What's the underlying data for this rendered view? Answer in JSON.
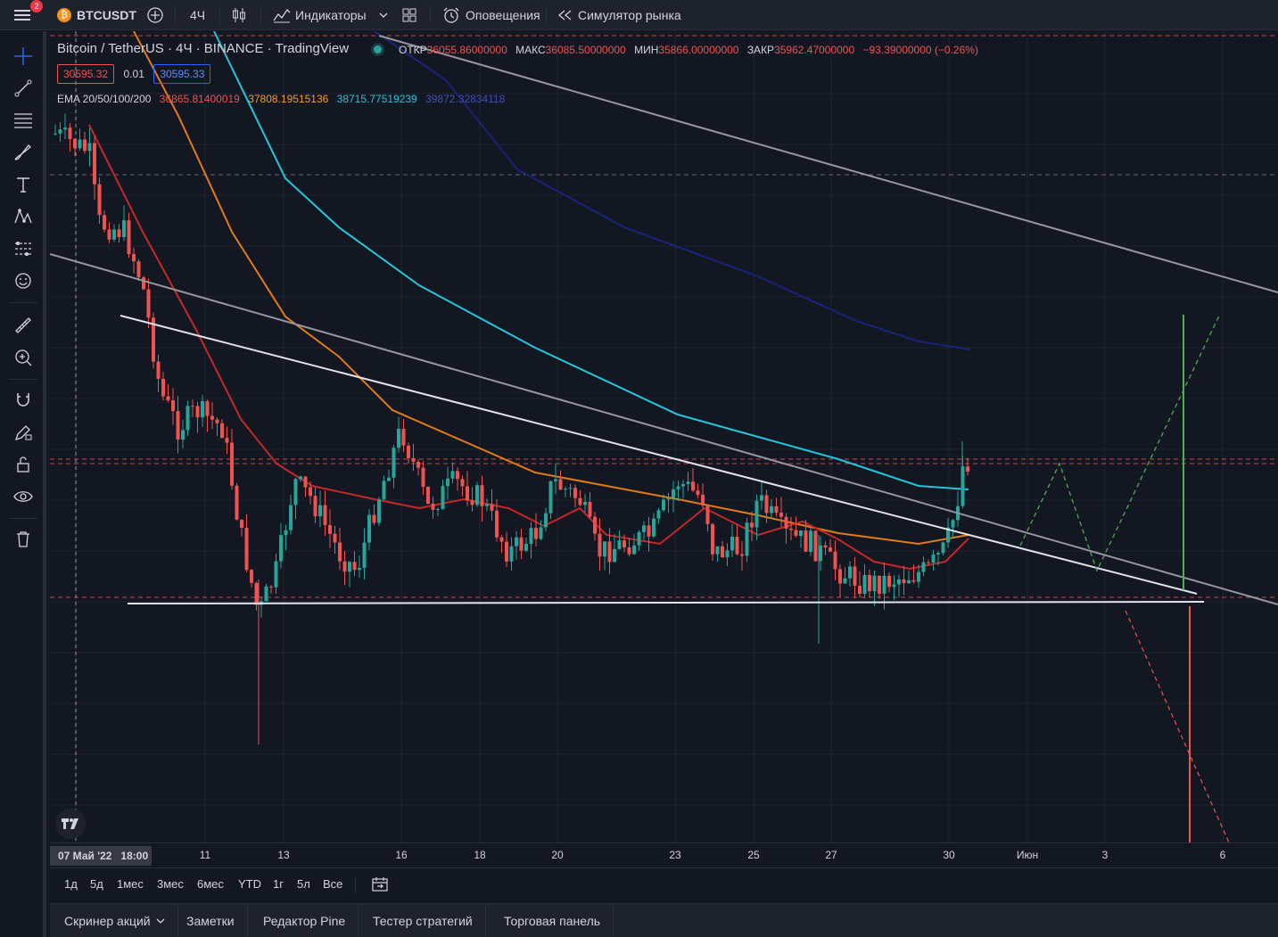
{
  "topbar": {
    "notifications": "2",
    "symbol": "BTCUSDT",
    "interval": "4Ч",
    "indicators": "Индикаторы",
    "alerts": "Оповещения",
    "replay": "Симулятор рынка"
  },
  "legend": {
    "title": "Bitcoin / TetherUS · 4Ч · BINANCE · TradingView",
    "open_label": "ОТКР",
    "open": "36055.86000000",
    "high_label": "МАКС",
    "high": "36085.50000000",
    "low_label": "МИН",
    "low": "35866.00000000",
    "close_label": "ЗАКР",
    "close": "35962.47000000",
    "change": "−93.39000000 (−0.26%)",
    "bid": "30595.32",
    "spread": "0.01",
    "ask": "30595.33",
    "ema_label": "EMA 20/50/100/200",
    "ema20": "36865.81400019",
    "ema50": "37808.19515136",
    "ema100": "38715.77519239",
    "ema200": "39872.32834118"
  },
  "timeaxis": {
    "current": "07 Май '22",
    "current_time": "18:00",
    "ticks": [
      "11",
      "13",
      "16",
      "18",
      "20",
      "23",
      "25",
      "27",
      "30",
      "Июн",
      "3",
      "6"
    ]
  },
  "ranges": [
    "1д",
    "5д",
    "1мес",
    "3мес",
    "6мес",
    "YTD",
    "1г",
    "5л",
    "Все"
  ],
  "bottom_tabs": [
    "Скринер акций",
    "Заметки",
    "Редактор Pine",
    "Тестер стратегий",
    "Торговая панель"
  ],
  "colors": {
    "up": "#26a69a",
    "down": "#ef5350",
    "ema20": "#c62828",
    "ema50": "#e07b1a",
    "ema100": "#26c6da",
    "ema200": "#1a237e",
    "accent": "#2962ff"
  },
  "icons": {
    "menu": "menu-icon",
    "crosshair": "crosshair-icon",
    "trendline": "trendline-icon",
    "fib": "fib-icon",
    "brush": "brush-icon",
    "text": "text-icon",
    "pattern": "pattern-icon",
    "measure": "ruler-icon",
    "zoom": "zoom-icon",
    "magnet": "magnet-icon",
    "lock": "lock-icon",
    "eye": "eye-icon",
    "trash": "trash-icon"
  }
}
